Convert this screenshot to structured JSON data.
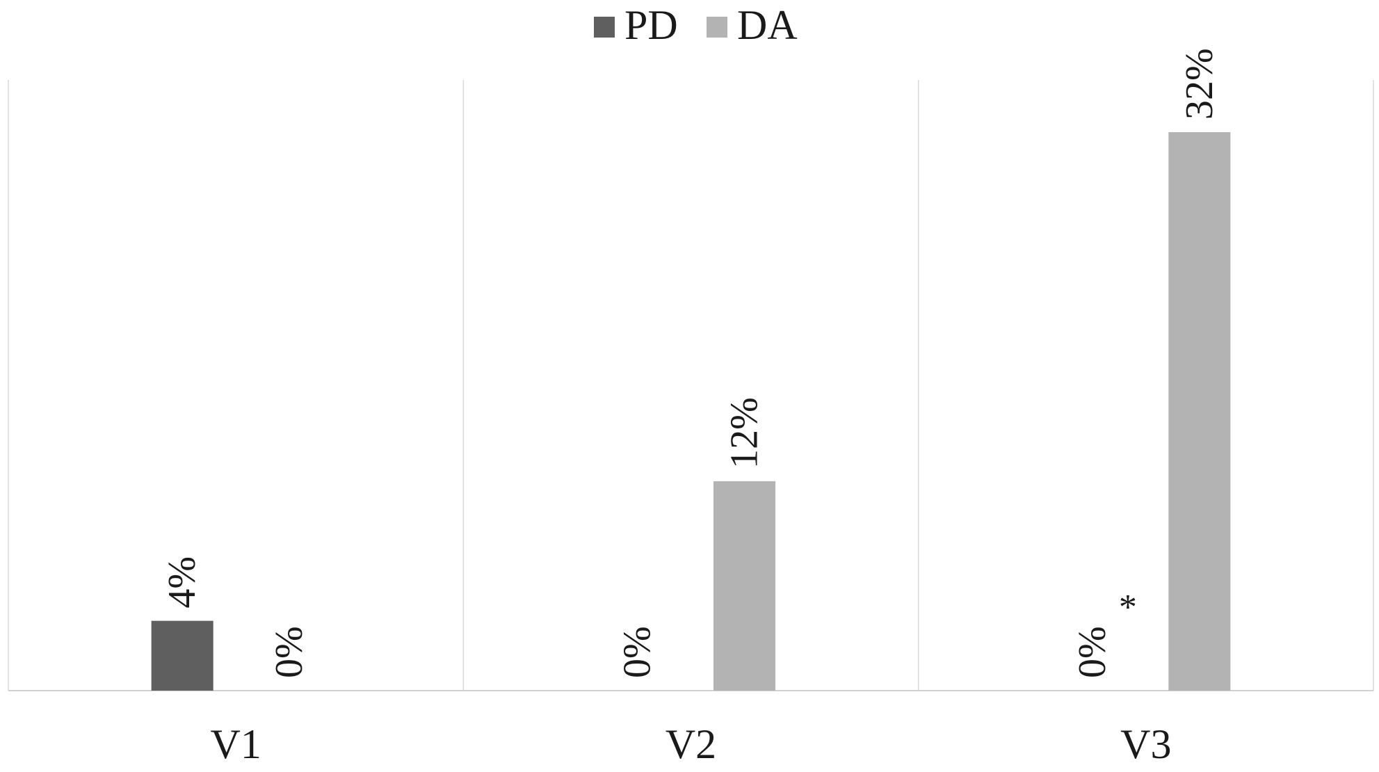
{
  "chart_data": {
    "type": "bar",
    "title": "",
    "xlabel": "",
    "ylabel": "",
    "categories": [
      "V1",
      "V2",
      "V3"
    ],
    "series": [
      {
        "name": "PD",
        "color": "#5f5f5f",
        "values": [
          4,
          0,
          0
        ],
        "labels": [
          "4%",
          "0%",
          "0%"
        ]
      },
      {
        "name": "DA",
        "color": "#b3b3b3",
        "values": [
          0,
          12,
          32
        ],
        "labels": [
          "0%",
          "12%",
          "32%"
        ]
      }
    ],
    "value_unit": "%",
    "ylim": [
      0,
      35
    ],
    "legend_position": "top-center",
    "grid": "vertical category separators",
    "data_label_orientation": "rotated vertical",
    "annotations": [
      {
        "text": "*",
        "category": "V3"
      }
    ]
  }
}
